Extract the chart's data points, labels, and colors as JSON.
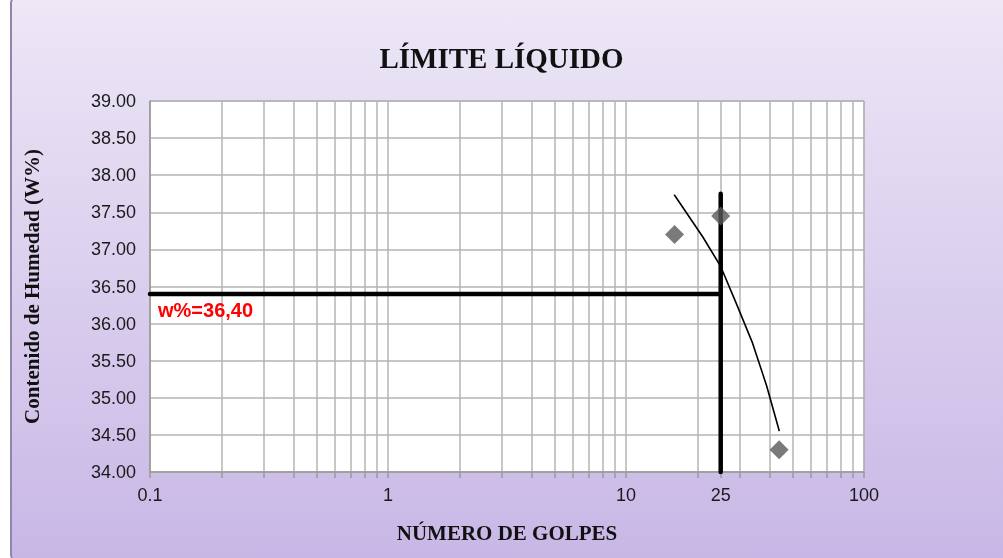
{
  "chart_data": {
    "type": "scatter",
    "title": "LÍMITE LÍQUIDO",
    "xlabel": "NÚMERO DE GOLPES",
    "ylabel": "Contenido de Humedad (W%)",
    "log": "x",
    "grid": true,
    "marker": "diamond",
    "xlim": [
      0.1,
      100
    ],
    "xticks": [
      0.1,
      {
        "value": 0.2,
        "label": null
      },
      {
        "value": 0.3,
        "label": null
      },
      {
        "value": 0.4,
        "label": null
      },
      {
        "value": 0.5,
        "label": null
      },
      {
        "value": 0.6,
        "label": null
      },
      {
        "value": 0.7,
        "label": null
      },
      {
        "value": 0.8,
        "label": null
      },
      {
        "value": 0.9,
        "label": null
      },
      1,
      {
        "value": 2,
        "label": null
      },
      {
        "value": 3,
        "label": null
      },
      {
        "value": 4,
        "label": null
      },
      {
        "value": 5,
        "label": null
      },
      {
        "value": 6,
        "label": null
      },
      {
        "value": 7,
        "label": null
      },
      {
        "value": 8,
        "label": null
      },
      {
        "value": 9,
        "label": null
      },
      10,
      {
        "value": 20,
        "label": null
      },
      25,
      {
        "value": 30,
        "label": null
      },
      {
        "value": 40,
        "label": null
      },
      {
        "value": 50,
        "label": null
      },
      {
        "value": 60,
        "label": null
      },
      {
        "value": 70,
        "label": null
      },
      {
        "value": 80,
        "label": null
      },
      {
        "value": 90,
        "label": null
      },
      100
    ],
    "ylim": [
      34,
      39
    ],
    "yticks": [
      {
        "value": 34,
        "label": "34.00"
      },
      {
        "value": 34.5,
        "label": "34.50"
      },
      {
        "value": 35,
        "label": "35.00"
      },
      {
        "value": 35.5,
        "label": "35.50"
      },
      {
        "value": 36,
        "label": "36.00"
      },
      {
        "value": 36.5,
        "label": "36.50"
      },
      {
        "value": 37,
        "label": "37.00"
      },
      {
        "value": 37.5,
        "label": "37.50"
      },
      {
        "value": 38,
        "label": "38.00"
      },
      {
        "value": 38.5,
        "label": "38.50"
      },
      {
        "value": 39,
        "label": "39.00"
      }
    ],
    "series": [
      {
        "color": "#595959",
        "x": [
          16,
          25,
          44
        ],
        "values": [
          37.2,
          37.45,
          34.3
        ]
      },
      {
        "type": "line",
        "color": "#000000",
        "marker": "none",
        "x": [
          16,
          21,
          25,
          29,
          34,
          39,
          44
        ],
        "values": [
          37.73,
          37.17,
          36.77,
          36.28,
          35.74,
          35.16,
          34.56
        ]
      },
      {
        "type": "line",
        "color": "#000000",
        "marker": "none",
        "x": [
          0.1,
          25
        ],
        "values": [
          36.4,
          36.4
        ]
      },
      {
        "type": "line",
        "color": "#000000",
        "marker": "none",
        "x": [
          25,
          25
        ],
        "values": [
          34,
          37.75
        ]
      }
    ],
    "annotations": [
      {
        "text": "w%=36,40",
        "x": 0.1,
        "y": 36.4
      }
    ]
  }
}
